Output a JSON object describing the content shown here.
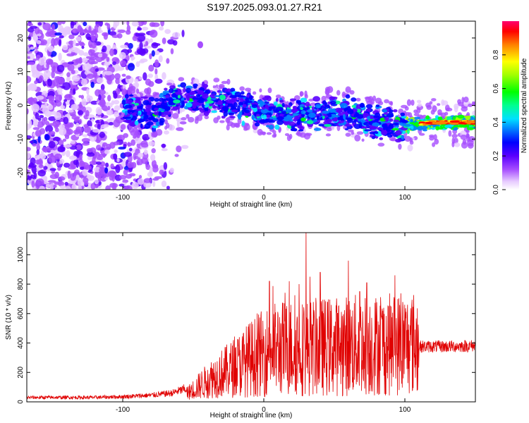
{
  "title": "S197.2025.093.01.27.R21",
  "chart_data": [
    {
      "type": "heatmap",
      "title": "S197.2025.093.01.27.R21",
      "xlabel": "Height of straight line (km)",
      "ylabel": "Frequency (Hz)",
      "xlim": [
        -168,
        150
      ],
      "ylim": [
        -25,
        25
      ],
      "xticks": [
        -100,
        0,
        100
      ],
      "yticks": [
        -20,
        -10,
        0,
        10,
        20
      ],
      "colorbar": {
        "label": "Normalized spectral amplitude",
        "range": [
          0,
          1
        ],
        "ticks": [
          0.0,
          0.2,
          0.4,
          0.6,
          0.8
        ],
        "colormap": [
          "#ffffff",
          "#d9b8ff",
          "#9b3cff",
          "#5500ff",
          "#0000ff",
          "#00bfff",
          "#00ffc8",
          "#00ff00",
          "#b0ff00",
          "#ffff00",
          "#ff8000",
          "#ff0000",
          "#ff0060"
        ]
      },
      "ridge": [
        {
          "x": -95,
          "f": -1
        },
        {
          "x": -80,
          "f": -3
        },
        {
          "x": -60,
          "f": 3
        },
        {
          "x": -40,
          "f": 1
        },
        {
          "x": -20,
          "f": 0
        },
        {
          "x": 0,
          "f": -2
        },
        {
          "x": 20,
          "f": -3
        },
        {
          "x": 40,
          "f": -2
        },
        {
          "x": 60,
          "f": -2
        },
        {
          "x": 80,
          "f": -5
        },
        {
          "x": 100,
          "f": -6
        },
        {
          "x": 120,
          "f": -5
        },
        {
          "x": 150,
          "f": -5
        }
      ]
    },
    {
      "type": "line",
      "xlabel": "Height of straight line (km)",
      "ylabel": "SNR (10 * v/v)",
      "xlim": [
        -168,
        150
      ],
      "ylim": [
        0,
        1150
      ],
      "xticks": [
        -100,
        0,
        100
      ],
      "yticks": [
        0,
        200,
        400,
        600,
        800,
        1000
      ],
      "color": "#e00000",
      "envelope": [
        {
          "x": -168,
          "y": 30
        },
        {
          "x": -120,
          "y": 30
        },
        {
          "x": -100,
          "y": 35
        },
        {
          "x": -80,
          "y": 45
        },
        {
          "x": -65,
          "y": 60
        },
        {
          "x": -55,
          "y": 90
        },
        {
          "x": -45,
          "y": 170
        },
        {
          "x": -35,
          "y": 230
        },
        {
          "x": -25,
          "y": 260
        },
        {
          "x": -10,
          "y": 310
        },
        {
          "x": 0,
          "y": 330
        },
        {
          "x": 15,
          "y": 350
        },
        {
          "x": 30,
          "y": 350
        },
        {
          "x": 50,
          "y": 360
        },
        {
          "x": 70,
          "y": 370
        },
        {
          "x": 90,
          "y": 370
        },
        {
          "x": 110,
          "y": 380
        },
        {
          "x": 130,
          "y": 380
        },
        {
          "x": 150,
          "y": 385
        }
      ],
      "peaks": [
        {
          "x": 4,
          "y": 820
        },
        {
          "x": 18,
          "y": 820
        },
        {
          "x": 25,
          "y": 800
        },
        {
          "x": 30,
          "y": 1150
        },
        {
          "x": 40,
          "y": 880
        },
        {
          "x": 60,
          "y": 960
        },
        {
          "x": 68,
          "y": 750
        },
        {
          "x": 73,
          "y": 810
        },
        {
          "x": 93,
          "y": 860
        }
      ]
    }
  ]
}
